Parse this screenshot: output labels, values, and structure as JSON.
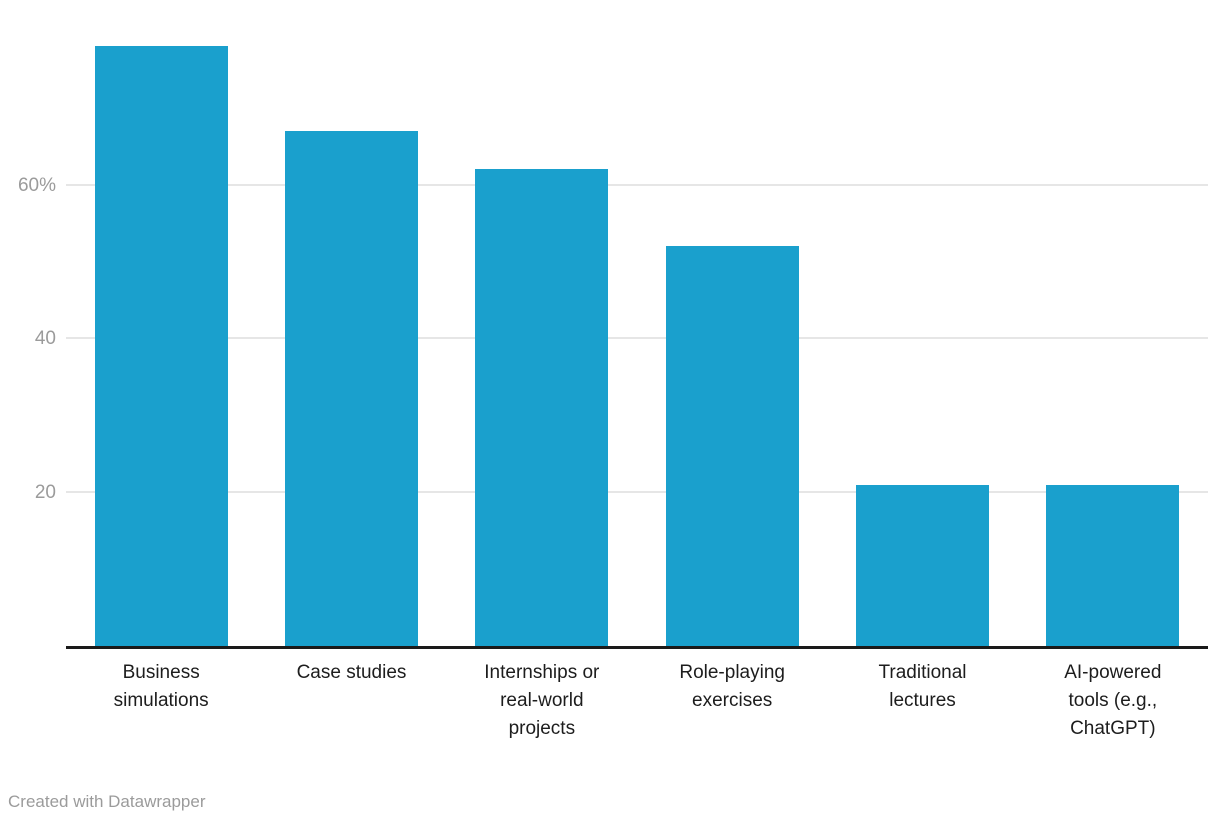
{
  "chart_data": {
    "type": "bar",
    "categories": [
      "Business simulations",
      "Case studies",
      "Internships or real-world projects",
      "Role-playing exercises",
      "Traditional lectures",
      "AI-powered tools (e.g., ChatGPT)"
    ],
    "values": [
      78,
      67,
      62,
      52,
      21,
      21
    ],
    "category_label_lines": [
      [
        "Business",
        "simulations"
      ],
      [
        "Case studies"
      ],
      [
        "Internships or",
        "real-world",
        "projects"
      ],
      [
        "Role-playing",
        "exercises"
      ],
      [
        "Traditional",
        "lectures"
      ],
      [
        "AI-powered",
        "tools (e.g.,",
        "ChatGPT)"
      ]
    ],
    "title": "",
    "xlabel": "",
    "ylabel": "",
    "ylim": [
      0,
      84
    ],
    "yticks": [
      20,
      40,
      60
    ],
    "ytick_labels": [
      "20",
      "40",
      "60%"
    ],
    "grid": true,
    "legend": "none",
    "unit": "%"
  },
  "colors": {
    "bar": "#1aa0cd",
    "gridline": "#e6e6e6",
    "axis_line": "#1a1a1a",
    "y_tick_label": "#9b9b9b",
    "category_label": "#1d1d1d",
    "footer_text": "#9b9b9b",
    "background": "#ffffff"
  },
  "footer": {
    "credit": "Created with Datawrapper"
  }
}
